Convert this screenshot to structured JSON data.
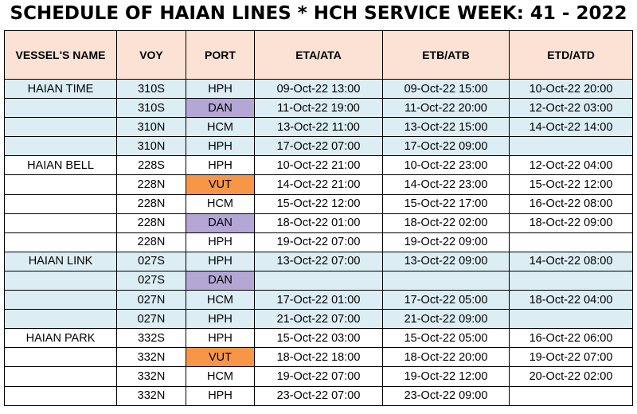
{
  "title": "SCHEDULE OF HAIAN LINES * HCH SERVICE WEEK: 41 - 2022",
  "colors": {
    "header_bg": "#fbe2d5",
    "band_bg": "#dcedf4",
    "dan_bg": "#b4a7d6",
    "vut_bg": "#f79646"
  },
  "columns": [
    "VESSEL'S NAME",
    "VOY",
    "PORT",
    "ETA/ATA",
    "ETB/ATB",
    "ETD/ATD"
  ],
  "rows": [
    {
      "vessel": "HAIAN TIME",
      "voy": "310S",
      "port": "HPH",
      "eta": "09-Oct-22 13:00",
      "etb": "09-Oct-22 15:00",
      "etd": "10-Oct-22 20:00"
    },
    {
      "vessel": "",
      "voy": "310S",
      "port": "DAN",
      "eta": "11-Oct-22 19:00",
      "etb": "11-Oct-22 20:00",
      "etd": "12-Oct-22 03:00"
    },
    {
      "vessel": "",
      "voy": "310N",
      "port": "HCM",
      "eta": "13-Oct-22 11:00",
      "etb": "13-Oct-22 15:00",
      "etd": "14-Oct-22 14:00"
    },
    {
      "vessel": "",
      "voy": "310N",
      "port": "HPH",
      "eta": "17-Oct-22 07:00",
      "etb": "17-Oct-22 09:00",
      "etd": ""
    },
    {
      "vessel": "HAIAN BELL",
      "voy": "228S",
      "port": "HPH",
      "eta": "10-Oct-22 21:00",
      "etb": "10-Oct-22 23:00",
      "etd": "12-Oct-22 04:00"
    },
    {
      "vessel": "",
      "voy": "228N",
      "port": "VUT",
      "eta": "14-Oct-22 21:00",
      "etb": "14-Oct-22 23:00",
      "etd": "15-Oct-22 12:00"
    },
    {
      "vessel": "",
      "voy": "228N",
      "port": "HCM",
      "eta": "15-Oct-22 12:00",
      "etb": "15-Oct-22 17:00",
      "etd": "16-Oct-22 08:00"
    },
    {
      "vessel": "",
      "voy": "228N",
      "port": "DAN",
      "eta": "18-Oct-22 01:00",
      "etb": "18-Oct-22 02:00",
      "etd": "18-Oct-22 09:00"
    },
    {
      "vessel": "",
      "voy": "228N",
      "port": "HPH",
      "eta": "19-Oct-22 07:00",
      "etb": "19-Oct-22 09:00",
      "etd": ""
    },
    {
      "vessel": "HAIAN LINK",
      "voy": "027S",
      "port": "HPH",
      "eta": "13-Oct-22 07:00",
      "etb": "13-Oct-22 09:00",
      "etd": "14-Oct-22 08:00"
    },
    {
      "vessel": "",
      "voy": "027S",
      "port": "DAN",
      "eta": "",
      "etb": "",
      "etd": ""
    },
    {
      "vessel": "",
      "voy": "027N",
      "port": "HCM",
      "eta": "17-Oct-22 01:00",
      "etb": "17-Oct-22 05:00",
      "etd": "18-Oct-22 04:00"
    },
    {
      "vessel": "",
      "voy": "027N",
      "port": "HPH",
      "eta": "21-Oct-22 07:00",
      "etb": "21-Oct-22 09:00",
      "etd": ""
    },
    {
      "vessel": "HAIAN PARK",
      "voy": "332S",
      "port": "HPH",
      "eta": "15-Oct-22 03:00",
      "etb": "15-Oct-22 05:00",
      "etd": "16-Oct-22 06:00"
    },
    {
      "vessel": "",
      "voy": "332N",
      "port": "VUT",
      "eta": "18-Oct-22 18:00",
      "etb": "18-Oct-22 20:00",
      "etd": "19-Oct-22 07:00"
    },
    {
      "vessel": "",
      "voy": "332N",
      "port": "HCM",
      "eta": "19-Oct-22 07:00",
      "etb": "19-Oct-22 12:00",
      "etd": "20-Oct-22 02:00"
    },
    {
      "vessel": "",
      "voy": "332N",
      "port": "HPH",
      "eta": "23-Oct-22 07:00",
      "etb": "23-Oct-22 09:00",
      "etd": ""
    }
  ]
}
